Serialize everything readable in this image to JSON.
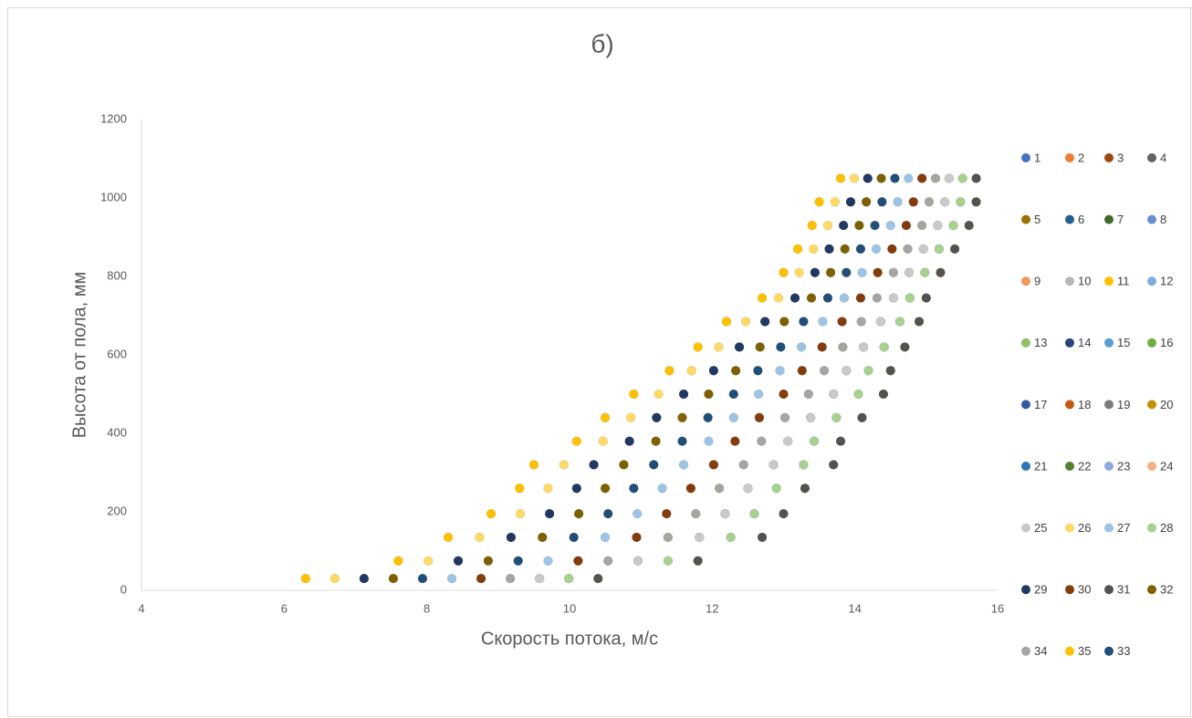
{
  "chart_data": {
    "type": "scatter",
    "title": "б)",
    "xlabel": "Скорость потока, м/с",
    "ylabel": "Высота от пола, мм",
    "xlim": [
      4,
      16
    ],
    "xticks": [
      4,
      6,
      8,
      10,
      12,
      14,
      16
    ],
    "ylim": [
      0,
      1200
    ],
    "yticks": [
      0,
      200,
      400,
      600,
      800,
      1000,
      1200
    ],
    "grid": false,
    "legend": "right",
    "y": [
      30,
      75,
      135,
      195,
      260,
      320,
      380,
      440,
      500,
      560,
      620,
      685,
      745,
      810,
      870,
      930,
      990,
      1050
    ],
    "series": [
      {
        "name": "1",
        "color": "#4472c4",
        "x": [
          6.3,
          7.6,
          8.3,
          8.9,
          9.3,
          9.5,
          10.1,
          10.5,
          10.9,
          11.4,
          11.8,
          12.2,
          12.7,
          13.0,
          13.2,
          13.4,
          13.5,
          13.8
        ]
      },
      {
        "name": "2",
        "color": "#ed7d31",
        "x": [
          7.94,
          9.28,
          10.06,
          10.54,
          10.9,
          11.18,
          11.58,
          11.94,
          12.3,
          12.64,
          12.96,
          13.28,
          13.62,
          13.88,
          14.08,
          14.28,
          14.38,
          14.56
        ]
      },
      {
        "name": "3",
        "color": "#9e480e",
        "x": [
          9.58,
          10.96,
          11.82,
          12.18,
          12.5,
          12.86,
          13.06,
          13.38,
          13.7,
          13.88,
          14.12,
          14.36,
          14.54,
          14.76,
          14.96,
          15.16,
          15.26,
          15.32
        ]
      },
      {
        "name": "4",
        "color": "#636363",
        "x": [
          6.71,
          8.02,
          8.74,
          9.31,
          9.7,
          9.92,
          10.47,
          10.86,
          11.25,
          11.71,
          12.09,
          12.47,
          12.93,
          13.22,
          13.42,
          13.62,
          13.72,
          13.99
        ]
      },
      {
        "name": "5",
        "color": "#997300",
        "x": [
          8.35,
          9.7,
          10.5,
          10.95,
          11.3,
          11.6,
          11.95,
          12.3,
          12.65,
          12.95,
          13.25,
          13.55,
          13.85,
          14.1,
          14.3,
          14.5,
          14.6,
          14.75
        ]
      },
      {
        "name": "6",
        "color": "#255e91",
        "x": [
          9.99,
          11.38,
          12.26,
          12.59,
          12.9,
          13.28,
          13.43,
          13.74,
          14.05,
          14.19,
          14.41,
          14.63,
          14.77,
          14.98,
          15.18,
          15.38,
          15.48,
          15.51
        ]
      },
      {
        "name": "7",
        "color": "#43682b",
        "x": [
          7.12,
          8.44,
          9.18,
          9.72,
          10.1,
          10.34,
          10.84,
          11.22,
          11.6,
          12.02,
          12.38,
          12.74,
          13.16,
          13.44,
          13.64,
          13.84,
          13.94,
          14.18
        ]
      },
      {
        "name": "8",
        "color": "#698ed0",
        "x": [
          8.76,
          10.12,
          10.94,
          11.36,
          11.7,
          12.02,
          12.32,
          12.66,
          13.0,
          13.26,
          13.54,
          13.82,
          14.08,
          14.32,
          14.52,
          14.72,
          14.82,
          14.94
        ]
      },
      {
        "name": "9",
        "color": "#f1975a",
        "x": [
          10.4,
          11.8,
          12.7,
          13.0,
          13.3,
          13.7,
          13.8,
          14.1,
          14.4,
          14.5,
          14.7,
          14.9,
          15.0,
          15.2,
          15.4,
          15.6,
          15.7,
          15.7
        ]
      },
      {
        "name": "10",
        "color": "#b7b7b7",
        "x": [
          7.53,
          8.86,
          9.62,
          10.13,
          10.5,
          10.76,
          11.21,
          11.58,
          11.95,
          12.33,
          12.67,
          13.01,
          13.39,
          13.66,
          13.86,
          14.06,
          14.16,
          14.37
        ]
      },
      {
        "name": "11",
        "color": "#ffc000",
        "x": [
          9.17,
          10.54,
          11.38,
          11.77,
          12.1,
          12.44,
          12.69,
          13.02,
          13.35,
          13.57,
          13.83,
          14.09,
          14.31,
          14.54,
          14.74,
          14.94,
          15.04,
          15.13
        ]
      },
      {
        "name": "12",
        "color": "#7cafdd",
        "x": [
          6.3,
          7.6,
          8.3,
          8.9,
          9.3,
          9.5,
          10.1,
          10.5,
          10.9,
          11.4,
          11.8,
          12.2,
          12.7,
          13.0,
          13.2,
          13.4,
          13.5,
          13.8
        ]
      },
      {
        "name": "13",
        "color": "#8cc168",
        "x": [
          7.94,
          9.28,
          10.06,
          10.54,
          10.9,
          11.18,
          11.58,
          11.94,
          12.3,
          12.64,
          12.96,
          13.28,
          13.62,
          13.88,
          14.08,
          14.28,
          14.38,
          14.56
        ]
      },
      {
        "name": "14",
        "color": "#264478",
        "x": [
          9.58,
          10.96,
          11.82,
          12.18,
          12.5,
          12.86,
          13.06,
          13.38,
          13.7,
          13.88,
          14.12,
          14.36,
          14.54,
          14.76,
          14.96,
          15.16,
          15.26,
          15.32
        ]
      },
      {
        "name": "15",
        "color": "#5b9bd5",
        "x": [
          6.71,
          8.02,
          8.74,
          9.31,
          9.7,
          9.92,
          10.47,
          10.86,
          11.25,
          11.71,
          12.09,
          12.47,
          12.93,
          13.22,
          13.42,
          13.62,
          13.72,
          13.99
        ]
      },
      {
        "name": "16",
        "color": "#70ad47",
        "x": [
          8.35,
          9.7,
          10.5,
          10.95,
          11.3,
          11.6,
          11.95,
          12.3,
          12.65,
          12.95,
          13.25,
          13.55,
          13.85,
          14.1,
          14.3,
          14.5,
          14.6,
          14.75
        ]
      },
      {
        "name": "17",
        "color": "#335aa1",
        "x": [
          9.99,
          11.38,
          12.26,
          12.59,
          12.9,
          13.28,
          13.43,
          13.74,
          14.05,
          14.19,
          14.41,
          14.63,
          14.77,
          14.98,
          15.18,
          15.38,
          15.48,
          15.51
        ]
      },
      {
        "name": "18",
        "color": "#c55a11",
        "x": [
          7.12,
          8.44,
          9.18,
          9.72,
          10.1,
          10.34,
          10.84,
          11.22,
          11.6,
          12.02,
          12.38,
          12.74,
          13.16,
          13.44,
          13.64,
          13.84,
          13.94,
          14.18
        ]
      },
      {
        "name": "19",
        "color": "#7b7b7b",
        "x": [
          8.76,
          10.12,
          10.94,
          11.36,
          11.7,
          12.02,
          12.32,
          12.66,
          13.0,
          13.26,
          13.54,
          13.82,
          14.08,
          14.32,
          14.52,
          14.72,
          14.82,
          14.94
        ]
      },
      {
        "name": "20",
        "color": "#bf9000",
        "x": [
          10.4,
          11.8,
          12.7,
          13.0,
          13.3,
          13.7,
          13.8,
          14.1,
          14.4,
          14.5,
          14.7,
          14.9,
          15.0,
          15.2,
          15.4,
          15.6,
          15.7,
          15.7
        ]
      },
      {
        "name": "21",
        "color": "#2e75b6",
        "x": [
          7.53,
          8.86,
          9.62,
          10.13,
          10.5,
          10.76,
          11.21,
          11.58,
          11.95,
          12.33,
          12.67,
          13.01,
          13.39,
          13.66,
          13.86,
          14.06,
          14.16,
          14.37
        ]
      },
      {
        "name": "22",
        "color": "#548235",
        "x": [
          9.17,
          10.54,
          11.38,
          11.77,
          12.1,
          12.44,
          12.69,
          13.02,
          13.35,
          13.57,
          13.83,
          14.09,
          14.31,
          14.54,
          14.74,
          14.94,
          15.04,
          15.13
        ]
      },
      {
        "name": "23",
        "color": "#8faadc",
        "x": [
          6.3,
          7.6,
          8.3,
          8.9,
          9.3,
          9.5,
          10.1,
          10.5,
          10.9,
          11.4,
          11.8,
          12.2,
          12.7,
          13.0,
          13.2,
          13.4,
          13.5,
          13.8
        ]
      },
      {
        "name": "24",
        "color": "#f4b183",
        "x": [
          7.94,
          9.28,
          10.06,
          10.54,
          10.9,
          11.18,
          11.58,
          11.94,
          12.3,
          12.64,
          12.96,
          13.28,
          13.62,
          13.88,
          14.08,
          14.28,
          14.38,
          14.56
        ]
      },
      {
        "name": "25",
        "color": "#c9c9c9",
        "x": [
          9.58,
          10.96,
          11.82,
          12.18,
          12.5,
          12.86,
          13.06,
          13.38,
          13.7,
          13.88,
          14.12,
          14.36,
          14.54,
          14.76,
          14.96,
          15.16,
          15.26,
          15.32
        ]
      },
      {
        "name": "26",
        "color": "#ffd966",
        "x": [
          6.71,
          8.02,
          8.74,
          9.31,
          9.7,
          9.92,
          10.47,
          10.86,
          11.25,
          11.71,
          12.09,
          12.47,
          12.93,
          13.22,
          13.42,
          13.62,
          13.72,
          13.99
        ]
      },
      {
        "name": "27",
        "color": "#9dc3e6",
        "x": [
          8.35,
          9.7,
          10.5,
          10.95,
          11.3,
          11.6,
          11.95,
          12.3,
          12.65,
          12.95,
          13.25,
          13.55,
          13.85,
          14.1,
          14.3,
          14.5,
          14.6,
          14.75
        ]
      },
      {
        "name": "28",
        "color": "#a9d18e",
        "x": [
          9.99,
          11.38,
          12.26,
          12.59,
          12.9,
          13.28,
          13.43,
          13.74,
          14.05,
          14.19,
          14.41,
          14.63,
          14.77,
          14.98,
          15.18,
          15.38,
          15.48,
          15.51
        ]
      },
      {
        "name": "29",
        "color": "#203864",
        "x": [
          7.12,
          8.44,
          9.18,
          9.72,
          10.1,
          10.34,
          10.84,
          11.22,
          11.6,
          12.02,
          12.38,
          12.74,
          13.16,
          13.44,
          13.64,
          13.84,
          13.94,
          14.18
        ]
      },
      {
        "name": "30",
        "color": "#843c0c",
        "x": [
          8.76,
          10.12,
          10.94,
          11.36,
          11.7,
          12.02,
          12.32,
          12.66,
          13.0,
          13.26,
          13.54,
          13.82,
          14.08,
          14.32,
          14.52,
          14.72,
          14.82,
          14.94
        ]
      },
      {
        "name": "31",
        "color": "#525252",
        "x": [
          10.4,
          11.8,
          12.7,
          13.0,
          13.3,
          13.7,
          13.8,
          14.1,
          14.4,
          14.5,
          14.7,
          14.9,
          15.0,
          15.2,
          15.4,
          15.6,
          15.7,
          15.7
        ]
      },
      {
        "name": "32",
        "color": "#7f6000",
        "x": [
          7.53,
          8.86,
          9.62,
          10.13,
          10.5,
          10.76,
          11.21,
          11.58,
          11.95,
          12.33,
          12.67,
          13.01,
          13.39,
          13.66,
          13.86,
          14.06,
          14.16,
          14.37
        ]
      },
      {
        "name": "34",
        "color": "#a5a5a5",
        "x": [
          9.17,
          10.54,
          11.38,
          11.77,
          12.1,
          12.44,
          12.69,
          13.02,
          13.35,
          13.57,
          13.83,
          14.09,
          14.31,
          14.54,
          14.74,
          14.94,
          15.04,
          15.13
        ]
      },
      {
        "name": "35",
        "color": "#ffc000",
        "x": [
          6.3,
          7.6,
          8.3,
          8.9,
          9.3,
          9.5,
          10.1,
          10.5,
          10.9,
          11.4,
          11.8,
          12.2,
          12.7,
          13.0,
          13.2,
          13.4,
          13.5,
          13.8
        ]
      },
      {
        "name": "33",
        "color": "#1f4e79",
        "x": [
          7.94,
          9.28,
          10.06,
          10.54,
          10.9,
          11.18,
          11.58,
          11.94,
          12.3,
          12.64,
          12.96,
          13.28,
          13.62,
          13.88,
          14.08,
          14.28,
          14.38,
          14.56
        ]
      }
    ]
  }
}
